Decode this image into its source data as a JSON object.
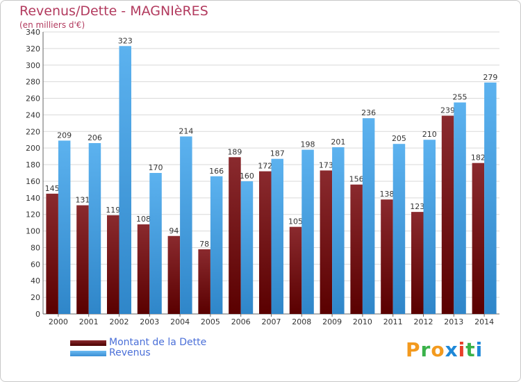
{
  "header": {
    "title": "Revenus/Dette - MAGNIèRES",
    "subtitle": "(en milliers d'€)"
  },
  "legend": {
    "items": [
      {
        "label": "Montant de la Dette",
        "color": "#6b0f12"
      },
      {
        "label": "Revenus",
        "color": "#4aa3e6"
      }
    ]
  },
  "logo": {
    "letters": [
      "P",
      "r",
      "o",
      "x",
      "i",
      "t",
      "i"
    ],
    "colors": [
      "#f39a1e",
      "#3ab24a",
      "#f39a1e",
      "#1e88d8",
      "#e8402a",
      "#3ab24a",
      "#1e88d8"
    ]
  },
  "chart_data": {
    "type": "bar",
    "categories": [
      "2000",
      "2001",
      "2002",
      "2003",
      "2004",
      "2005",
      "2006",
      "2007",
      "2008",
      "2009",
      "2010",
      "2011",
      "2012",
      "2013",
      "2014"
    ],
    "series": [
      {
        "name": "Montant de la Dette",
        "color": "#7a1e22",
        "values": [
          145,
          131,
          119,
          108,
          94,
          78,
          189,
          172,
          105,
          173,
          156,
          138,
          123,
          239,
          182
        ]
      },
      {
        "name": "Revenus",
        "color": "#4aa3e6",
        "values": [
          209,
          206,
          323,
          170,
          214,
          166,
          160,
          187,
          198,
          201,
          236,
          205,
          210,
          255,
          279
        ]
      }
    ],
    "ylim": [
      0,
      340
    ],
    "yticks": [
      0,
      20,
      40,
      60,
      80,
      100,
      120,
      140,
      160,
      180,
      200,
      220,
      240,
      260,
      280,
      300,
      320,
      340
    ],
    "grid": true,
    "legend": "bottom-left"
  }
}
